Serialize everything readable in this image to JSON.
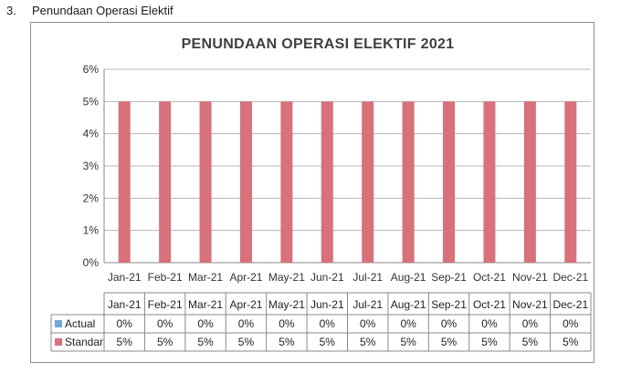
{
  "section": {
    "number": "3.",
    "heading": "Penundaan Operasi Elektif"
  },
  "chart_data": {
    "type": "bar",
    "title": "PENUNDAAN OPERASI ELEKTIF 2021",
    "categories": [
      "Jan-21",
      "Feb-21",
      "Mar-21",
      "Apr-21",
      "May-21",
      "Jun-21",
      "Jul-21",
      "Aug-21",
      "Sep-21",
      "Oct-21",
      "Nov-21",
      "Dec-21"
    ],
    "series": [
      {
        "name": "Actual",
        "values": [
          0,
          0,
          0,
          0,
          0,
          0,
          0,
          0,
          0,
          0,
          0,
          0
        ],
        "labels": [
          "0%",
          "0%",
          "0%",
          "0%",
          "0%",
          "0%",
          "0%",
          "0%",
          "0%",
          "0%",
          "0%",
          "0%"
        ],
        "color": "#6fa8dc"
      },
      {
        "name": "Standar",
        "values": [
          5,
          5,
          5,
          5,
          5,
          5,
          5,
          5,
          5,
          5,
          5,
          5
        ],
        "labels": [
          "5%",
          "5%",
          "5%",
          "5%",
          "5%",
          "5%",
          "5%",
          "5%",
          "5%",
          "5%",
          "5%",
          "5%"
        ],
        "color": "#d9707a"
      }
    ],
    "ylim": [
      0,
      6
    ],
    "yticks": [
      "0%",
      "1%",
      "2%",
      "3%",
      "4%",
      "5%",
      "6%"
    ],
    "grid": true,
    "legend": "data-table"
  }
}
